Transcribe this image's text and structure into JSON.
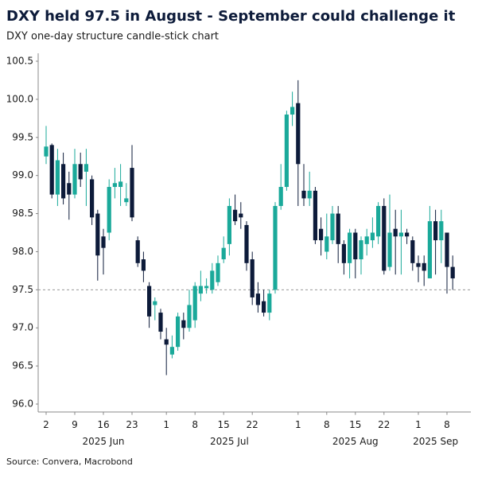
{
  "chart_data": {
    "type": "candlestick",
    "title": "DXY held 97.5 in August - September could challenge it",
    "subtitle": "DXY one-day structure candle-stick chart",
    "source": "Source: Convera, Macrobond",
    "categories": [
      "2",
      null,
      null,
      null,
      null,
      "9",
      null,
      null,
      null,
      null,
      "16",
      null,
      null,
      null,
      null,
      "23",
      null,
      null,
      null,
      null,
      null,
      "1",
      null,
      null,
      null,
      null,
      "8",
      null,
      null,
      null,
      null,
      "15",
      null,
      null,
      null,
      null,
      "22",
      null,
      null,
      null,
      null,
      null,
      null,
      null,
      "1",
      null,
      null,
      null,
      null,
      "8",
      null,
      null,
      null,
      null,
      "15",
      null,
      null,
      null,
      null,
      "22",
      null,
      null,
      null,
      null,
      null,
      "1",
      null,
      null,
      null,
      null,
      "8",
      null
    ],
    "month_groups": [
      {
        "label": "2025 Jun",
        "count": 21
      },
      {
        "label": "2025 Jul",
        "count": 23
      },
      {
        "label": "2025 Aug",
        "count": 21
      },
      {
        "label": "2025 Sep",
        "count": 7
      }
    ],
    "up_color": "#1aa99a",
    "down_color": "#0d1b3a",
    "open": [
      99.25,
      99.4,
      98.75,
      99.15,
      98.9,
      98.75,
      99.15,
      99.05,
      98.95,
      98.5,
      98.2,
      98.25,
      98.85,
      98.85,
      98.65,
      99.1,
      98.15,
      97.9,
      97.55,
      97.3,
      97.2,
      96.85,
      96.65,
      96.75,
      97.1,
      97.0,
      97.1,
      97.45,
      97.52,
      97.5,
      97.6,
      97.9,
      98.1,
      98.55,
      98.5,
      98.35,
      97.9,
      97.45,
      97.35,
      97.2,
      97.5,
      98.6,
      98.85,
      99.8,
      99.95,
      98.8,
      98.7,
      98.8,
      98.3,
      98.0,
      98.15,
      98.5,
      98.1,
      97.85,
      98.25,
      97.9,
      98.1,
      98.15,
      98.2,
      98.6,
      97.8,
      98.3,
      98.2,
      98.25,
      98.15,
      97.85,
      97.85,
      97.65,
      98.4,
      98.15,
      98.25,
      97.8
    ],
    "high": [
      99.65,
      99.42,
      99.35,
      99.3,
      99.05,
      99.35,
      99.3,
      99.35,
      99.0,
      98.55,
      98.3,
      98.95,
      99.1,
      99.15,
      98.9,
      99.4,
      98.2,
      98.0,
      97.6,
      97.4,
      97.25,
      97.0,
      96.9,
      97.2,
      97.2,
      97.5,
      97.6,
      97.75,
      97.65,
      97.85,
      97.95,
      98.2,
      98.7,
      98.75,
      98.65,
      98.4,
      98.0,
      97.6,
      97.5,
      97.5,
      98.65,
      99.15,
      99.85,
      100.1,
      100.25,
      99.15,
      99.05,
      98.85,
      98.45,
      98.5,
      98.6,
      98.6,
      98.15,
      98.3,
      98.3,
      98.2,
      98.3,
      98.45,
      98.65,
      98.7,
      98.75,
      98.55,
      98.55,
      98.3,
      98.2,
      97.95,
      97.95,
      98.6,
      98.55,
      98.55,
      98.25,
      97.95
    ],
    "low": [
      99.15,
      98.7,
      98.6,
      98.62,
      98.42,
      98.7,
      98.85,
      98.6,
      98.35,
      97.62,
      97.7,
      98.15,
      98.7,
      98.6,
      98.6,
      98.4,
      97.8,
      97.6,
      97.0,
      97.1,
      96.85,
      96.38,
      96.6,
      96.7,
      96.85,
      96.95,
      97.0,
      97.35,
      97.45,
      97.45,
      97.55,
      97.85,
      97.95,
      98.35,
      98.3,
      97.75,
      97.3,
      97.2,
      97.15,
      97.1,
      97.45,
      98.55,
      98.8,
      99.65,
      98.6,
      98.6,
      98.6,
      98.1,
      97.95,
      97.9,
      98.1,
      97.85,
      97.7,
      97.65,
      97.65,
      97.7,
      97.95,
      98.05,
      98.1,
      97.7,
      97.75,
      97.7,
      97.7,
      98.1,
      97.75,
      97.6,
      97.55,
      97.65,
      97.7,
      97.85,
      97.45,
      97.5
    ],
    "close": [
      99.38,
      98.75,
      99.2,
      98.7,
      98.75,
      99.15,
      98.95,
      99.15,
      98.45,
      97.95,
      98.05,
      98.85,
      98.9,
      98.92,
      98.7,
      98.45,
      97.85,
      97.75,
      97.15,
      97.35,
      96.95,
      96.78,
      96.75,
      97.15,
      97.0,
      97.3,
      97.55,
      97.55,
      97.55,
      97.75,
      97.85,
      98.05,
      98.6,
      98.4,
      98.45,
      97.85,
      97.4,
      97.3,
      97.2,
      97.45,
      98.6,
      98.85,
      99.8,
      99.9,
      99.15,
      98.7,
      98.8,
      98.15,
      98.15,
      98.2,
      98.5,
      98.1,
      97.85,
      98.25,
      97.9,
      98.15,
      98.2,
      98.25,
      98.6,
      97.75,
      98.25,
      98.2,
      98.25,
      98.2,
      97.85,
      97.8,
      97.75,
      98.4,
      98.15,
      98.4,
      97.8,
      97.65
    ],
    "reference_line": 97.5,
    "ylim": [
      95.9,
      100.6
    ],
    "yticks": [
      {
        "value": 96.0,
        "label": "96.0"
      },
      96.5,
      {
        "value": 97.0,
        "label": "97.0"
      },
      97.5,
      {
        "value": 98.0,
        "label": "98.0"
      },
      98.5,
      {
        "value": 99.0,
        "label": "99.0"
      },
      99.5,
      {
        "value": 100.0,
        "label": "100.0"
      },
      100.5
    ]
  }
}
